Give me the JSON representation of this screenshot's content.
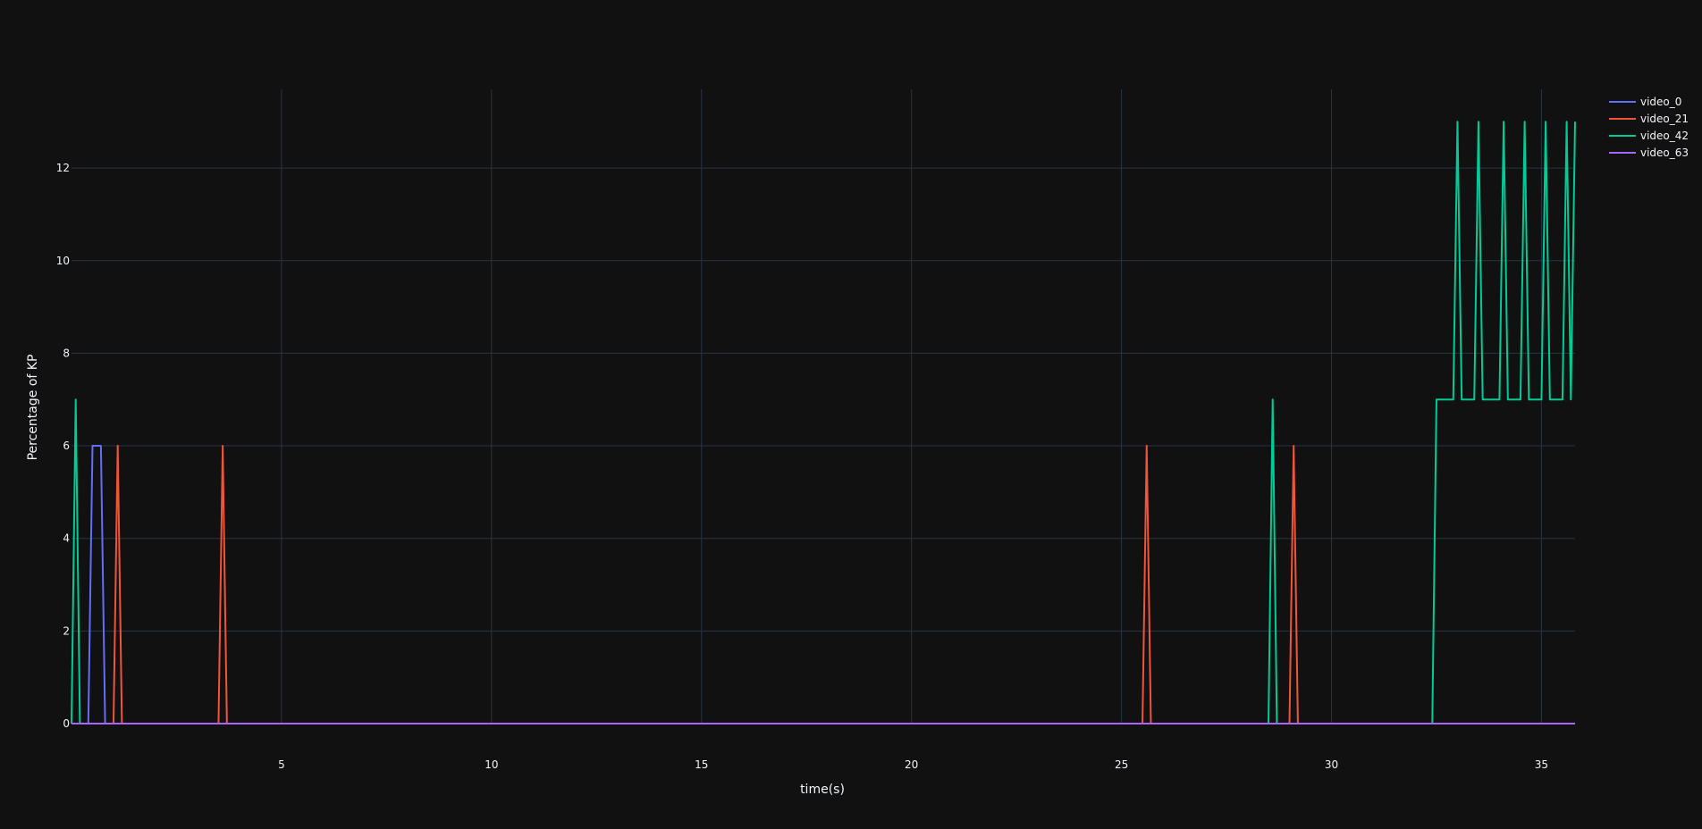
{
  "chart_data": {
    "type": "line",
    "title": "",
    "xlabel": "time(s)",
    "ylabel": "Percentage of KP",
    "xlim": [
      0,
      35.8
    ],
    "ylim": [
      0,
      13.7
    ],
    "x_ticks": [
      5,
      10,
      15,
      20,
      25,
      30,
      35
    ],
    "y_ticks": [
      0,
      2,
      4,
      6,
      8,
      10,
      12
    ],
    "grid": true,
    "legend_position": "top-right",
    "series": [
      {
        "name": "video_0",
        "color": "#636efa",
        "x": [
          0,
          0.4,
          0.5,
          0.7,
          0.8,
          35.8
        ],
        "y": [
          0,
          0,
          6,
          6,
          0,
          0
        ]
      },
      {
        "name": "video_21",
        "color": "#ef553b",
        "x": [
          0,
          1.0,
          1.1,
          1.2,
          3.5,
          3.6,
          3.7,
          25.5,
          25.6,
          25.7,
          29.0,
          29.1,
          29.2,
          35.8
        ],
        "y": [
          0,
          0,
          6,
          0,
          0,
          6,
          0,
          0,
          6,
          0,
          0,
          6,
          0,
          0
        ]
      },
      {
        "name": "video_42",
        "color": "#00cc96",
        "x": [
          0,
          0.1,
          0.2,
          28.5,
          28.6,
          28.7,
          32.4,
          32.5,
          32.9,
          33.0,
          33.1,
          33.4,
          33.5,
          33.6,
          34.0,
          34.1,
          34.2,
          34.5,
          34.6,
          34.7,
          35.0,
          35.1,
          35.2,
          35.5,
          35.6,
          35.7,
          35.8
        ],
        "y": [
          0,
          7,
          0,
          0,
          7,
          0,
          0,
          7,
          7,
          13,
          7,
          7,
          13,
          7,
          7,
          13,
          7,
          7,
          13,
          7,
          7,
          13,
          7,
          7,
          13,
          7,
          13
        ]
      },
      {
        "name": "video_63",
        "color": "#ab63fa",
        "x": [
          0,
          35.8
        ],
        "y": [
          0,
          0
        ]
      }
    ]
  }
}
